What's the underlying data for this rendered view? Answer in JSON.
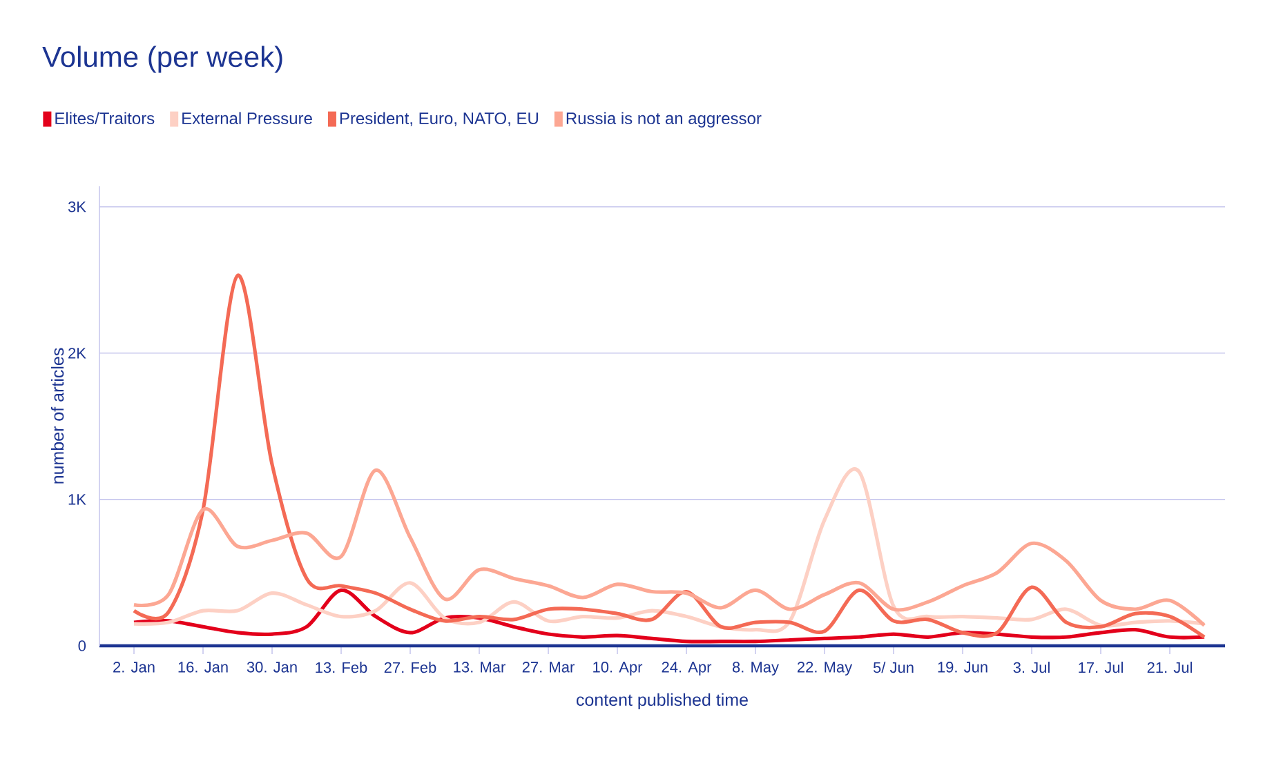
{
  "chart_data": {
    "type": "line",
    "title": "Volume (per week)",
    "xlabel": "content published time",
    "ylabel": "number of articles",
    "categories": [
      "2. Jan",
      null,
      "16. Jan",
      null,
      "30. Jan",
      null,
      "13. Feb",
      null,
      "27. Feb",
      null,
      "13. Mar",
      null,
      "27. Mar",
      null,
      "10. Apr",
      null,
      "24. Apr",
      null,
      "8. May",
      null,
      "22. May",
      null,
      "5/ Jun",
      null,
      "19. Jun",
      null,
      "3. Jul",
      null,
      "17. Jul",
      null,
      "21. Jul",
      null
    ],
    "series": [
      {
        "name": "Elites/Traitors",
        "color": "#e3001b",
        "values": [
          160,
          170,
          130,
          90,
          80,
          130,
          380,
          200,
          90,
          190,
          190,
          130,
          80,
          60,
          70,
          50,
          30,
          30,
          30,
          40,
          50,
          60,
          80,
          60,
          90,
          80,
          60,
          60,
          90,
          110,
          60,
          60
        ]
      },
      {
        "name": "External Pressure",
        "color": "#fdd0c4",
        "values": [
          150,
          160,
          240,
          240,
          360,
          280,
          200,
          240,
          430,
          190,
          160,
          300,
          170,
          200,
          190,
          240,
          200,
          130,
          110,
          170,
          860,
          1190,
          270,
          200,
          200,
          190,
          180,
          250,
          140,
          160,
          170,
          150
        ]
      },
      {
        "name": "President, Euro, NATO, EU",
        "color": "#f46a55",
        "values": [
          240,
          230,
          930,
          2530,
          1240,
          460,
          410,
          360,
          250,
          170,
          200,
          180,
          250,
          250,
          220,
          180,
          370,
          130,
          160,
          160,
          100,
          380,
          170,
          180,
          90,
          90,
          400,
          160,
          130,
          220,
          200,
          60
        ]
      },
      {
        "name": "Russia is not an aggressor",
        "color": "#fca793",
        "values": [
          280,
          350,
          930,
          680,
          720,
          770,
          610,
          1200,
          740,
          320,
          520,
          460,
          410,
          330,
          420,
          370,
          360,
          260,
          380,
          250,
          350,
          430,
          250,
          300,
          410,
          500,
          700,
          580,
          310,
          250,
          310,
          140
        ]
      }
    ],
    "ylim": [
      0,
      3140
    ],
    "yticks": [
      0,
      {
        "value": 1000,
        "label": "1K"
      },
      {
        "value": 2000,
        "label": "2K"
      },
      {
        "value": 3000,
        "label": "3K"
      }
    ],
    "grid": "y",
    "legend": "top left",
    "marker": "none",
    "line_style": "solid"
  }
}
